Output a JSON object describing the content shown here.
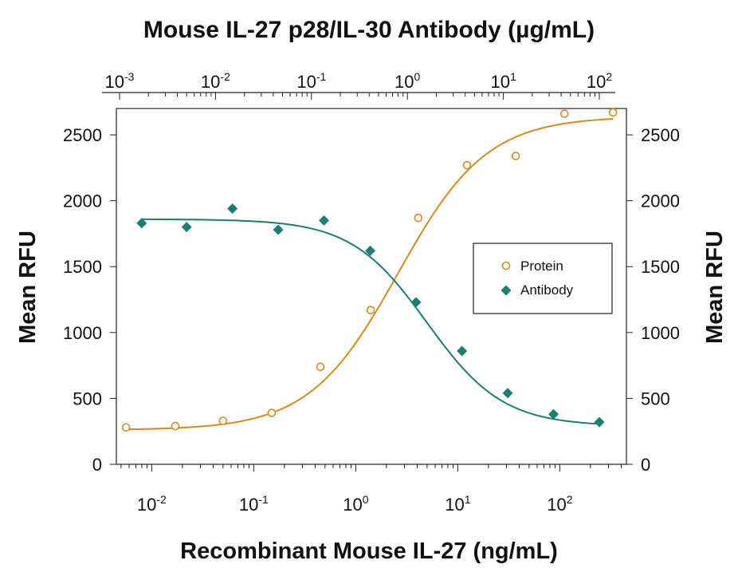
{
  "chart_data": {
    "type": "scatter",
    "title": "Mouse IL-27 p28/IL-30 Antibody (µg/mL)",
    "xlabel": "Recombinant Mouse IL-27 (ng/mL)",
    "ylabel": "Mean RFU",
    "y2label": "Mean RFU",
    "x_scale": "log",
    "xlim": [
      0.0045,
      450
    ],
    "x2_scale": "log",
    "x2lim": [
      0.001,
      100
    ],
    "ylim": [
      0,
      2700
    ],
    "y_ticks": [
      "0",
      "500",
      "1000",
      "1500",
      "2000",
      "2500"
    ],
    "x_ticks": [
      {
        "base": "10",
        "exp": "-2"
      },
      {
        "base": "10",
        "exp": "-1"
      },
      {
        "base": "10",
        "exp": "0"
      },
      {
        "base": "10",
        "exp": "1"
      },
      {
        "base": "10",
        "exp": "2"
      }
    ],
    "x2_ticks": [
      {
        "base": "10",
        "exp": "-3"
      },
      {
        "base": "10",
        "exp": "-2"
      },
      {
        "base": "10",
        "exp": "-1"
      },
      {
        "base": "10",
        "exp": "0"
      },
      {
        "base": "10",
        "exp": "1"
      },
      {
        "base": "10",
        "exp": "2"
      }
    ],
    "grid": false,
    "legend_position": "right",
    "series": [
      {
        "name": "Protein",
        "axis": "bottom",
        "marker": "open-circle",
        "color": "#D98B1A",
        "x": [
          0.0056,
          0.017,
          0.05,
          0.15,
          0.45,
          1.4,
          4.1,
          12.3,
          37,
          111,
          333
        ],
        "y": [
          280,
          290,
          330,
          390,
          740,
          1170,
          1870,
          2270,
          2340,
          2660,
          2670
        ]
      },
      {
        "name": "Antibody",
        "axis": "top",
        "marker": "filled-diamond",
        "color": "#1B7D74",
        "x": [
          0.0017,
          0.005,
          0.015,
          0.045,
          0.135,
          0.41,
          1.23,
          3.7,
          11.1,
          33.3,
          100
        ],
        "y": [
          1830,
          1800,
          1940,
          1780,
          1850,
          1620,
          1230,
          860,
          540,
          380,
          320
        ]
      }
    ],
    "fits": [
      {
        "series": "Protein",
        "bottom": 260,
        "top": 2640,
        "ec50": 2.6,
        "hill": 1.0
      },
      {
        "series": "Antibody",
        "bottom": 290,
        "top": 1860,
        "ec50": 1.6,
        "hill": 1.1
      }
    ]
  }
}
